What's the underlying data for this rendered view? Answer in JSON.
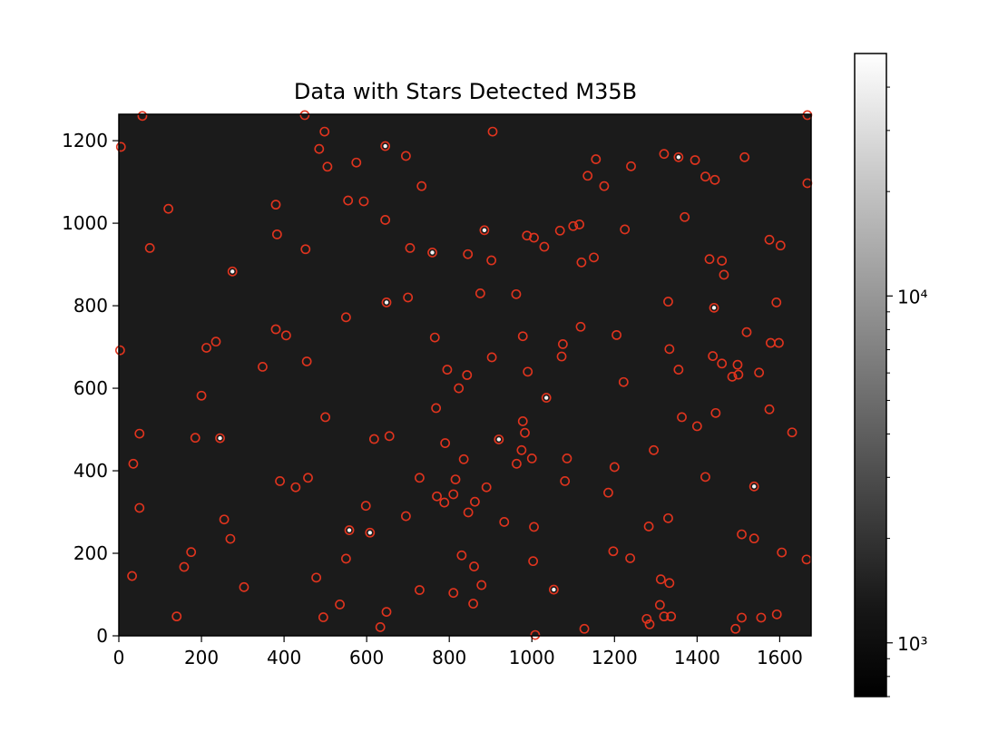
{
  "chart_data": {
    "type": "scatter",
    "title": "Data with Stars Detected M35B",
    "xlabel": "",
    "ylabel": "",
    "xlim": [
      0,
      1676
    ],
    "ylim": [
      0,
      1264
    ],
    "x_ticks": [
      0,
      200,
      400,
      600,
      800,
      1000,
      1200,
      1400,
      1600
    ],
    "x_tick_labels": [
      "0",
      "200",
      "400",
      "600",
      "800",
      "1000",
      "1200",
      "1400",
      "1600"
    ],
    "y_ticks": [
      0,
      200,
      400,
      600,
      800,
      1000,
      1200
    ],
    "y_tick_labels": [
      "0",
      "200",
      "400",
      "600",
      "800",
      "1000",
      "1200"
    ],
    "grid": false,
    "image": {
      "colormap": "gray",
      "scale": "log",
      "background_level": 900
    },
    "colorbar": {
      "scale": "log",
      "range": [
        700,
        50000
      ],
      "major_ticks": [
        1000,
        10000
      ],
      "major_tick_labels": [
        "10³",
        "10⁴"
      ],
      "minor_ticks": [
        700,
        800,
        900,
        2000,
        3000,
        4000,
        5000,
        6000,
        7000,
        8000,
        9000,
        20000,
        30000,
        40000
      ]
    },
    "marker_color": "#e0341e",
    "bright_stars": [
      [
        1035,
        577
      ],
      [
        558,
        256
      ],
      [
        608,
        250
      ],
      [
        275,
        883
      ],
      [
        648,
        808
      ],
      [
        645,
        1187
      ],
      [
        1538,
        362
      ],
      [
        1441,
        795
      ],
      [
        1355,
        1160
      ],
      [
        1053,
        112
      ],
      [
        759,
        929
      ],
      [
        885,
        983
      ],
      [
        920,
        476
      ],
      [
        245,
        479
      ]
    ],
    "stars": [
      [
        5,
        1185
      ],
      [
        57,
        1260
      ],
      [
        450,
        1262
      ],
      [
        1667,
        1262
      ],
      [
        120,
        1035
      ],
      [
        75,
        940
      ],
      [
        3,
        692
      ],
      [
        498,
        1222
      ],
      [
        905,
        1222
      ],
      [
        485,
        1180
      ],
      [
        695,
        1163
      ],
      [
        505,
        1137
      ],
      [
        575,
        1147
      ],
      [
        1155,
        1155
      ],
      [
        1135,
        1115
      ],
      [
        1175,
        1090
      ],
      [
        1240,
        1138
      ],
      [
        1320,
        1168
      ],
      [
        1395,
        1153
      ],
      [
        1420,
        1113
      ],
      [
        1443,
        1105
      ],
      [
        1515,
        1160
      ],
      [
        1667,
        1097
      ],
      [
        380,
        1045
      ],
      [
        555,
        1055
      ],
      [
        593,
        1053
      ],
      [
        733,
        1090
      ],
      [
        645,
        1008
      ],
      [
        383,
        973
      ],
      [
        452,
        937
      ],
      [
        705,
        940
      ],
      [
        845,
        925
      ],
      [
        902,
        910
      ],
      [
        988,
        970
      ],
      [
        1005,
        965
      ],
      [
        1030,
        943
      ],
      [
        1068,
        982
      ],
      [
        1100,
        993
      ],
      [
        1115,
        997
      ],
      [
        1120,
        905
      ],
      [
        1150,
        917
      ],
      [
        1225,
        985
      ],
      [
        1370,
        1015
      ],
      [
        1430,
        913
      ],
      [
        1460,
        909
      ],
      [
        1465,
        875
      ],
      [
        1575,
        960
      ],
      [
        1602,
        946
      ],
      [
        700,
        820
      ],
      [
        875,
        830
      ],
      [
        962,
        828
      ],
      [
        1330,
        810
      ],
      [
        1592,
        808
      ],
      [
        380,
        743
      ],
      [
        405,
        728
      ],
      [
        550,
        772
      ],
      [
        765,
        723
      ],
      [
        978,
        726
      ],
      [
        1075,
        707
      ],
      [
        1072,
        677
      ],
      [
        1118,
        749
      ],
      [
        1205,
        729
      ],
      [
        1520,
        736
      ],
      [
        1578,
        710
      ],
      [
        1598,
        710
      ],
      [
        212,
        698
      ],
      [
        235,
        713
      ],
      [
        455,
        665
      ],
      [
        348,
        652
      ],
      [
        200,
        582
      ],
      [
        795,
        645
      ],
      [
        843,
        632
      ],
      [
        823,
        600
      ],
      [
        903,
        675
      ],
      [
        990,
        640
      ],
      [
        1222,
        615
      ],
      [
        1333,
        695
      ],
      [
        1355,
        645
      ],
      [
        1438,
        678
      ],
      [
        1460,
        660
      ],
      [
        1498,
        657
      ],
      [
        1500,
        633
      ],
      [
        1550,
        638
      ],
      [
        1485,
        628
      ],
      [
        500,
        530
      ],
      [
        768,
        552
      ],
      [
        1363,
        530
      ],
      [
        1400,
        508
      ],
      [
        1445,
        540
      ],
      [
        1575,
        549
      ],
      [
        185,
        480
      ],
      [
        50,
        490
      ],
      [
        35,
        417
      ],
      [
        618,
        477
      ],
      [
        655,
        484
      ],
      [
        790,
        467
      ],
      [
        835,
        428
      ],
      [
        978,
        520
      ],
      [
        983,
        492
      ],
      [
        975,
        450
      ],
      [
        963,
        417
      ],
      [
        1000,
        430
      ],
      [
        1085,
        430
      ],
      [
        1080,
        375
      ],
      [
        1200,
        409
      ],
      [
        1295,
        450
      ],
      [
        1630,
        493
      ],
      [
        390,
        375
      ],
      [
        428,
        360
      ],
      [
        458,
        383
      ],
      [
        728,
        383
      ],
      [
        815,
        379
      ],
      [
        810,
        343
      ],
      [
        770,
        338
      ],
      [
        788,
        323
      ],
      [
        862,
        325
      ],
      [
        846,
        299
      ],
      [
        890,
        360
      ],
      [
        1185,
        347
      ],
      [
        1420,
        385
      ],
      [
        598,
        315
      ],
      [
        695,
        290
      ],
      [
        933,
        276
      ],
      [
        1005,
        264
      ],
      [
        1330,
        285
      ],
      [
        1283,
        265
      ],
      [
        1508,
        246
      ],
      [
        1538,
        236
      ],
      [
        255,
        282
      ],
      [
        270,
        235
      ],
      [
        50,
        310
      ],
      [
        175,
        203
      ],
      [
        158,
        167
      ],
      [
        32,
        145
      ],
      [
        303,
        118
      ],
      [
        550,
        187
      ],
      [
        478,
        141
      ],
      [
        830,
        195
      ],
      [
        860,
        168
      ],
      [
        878,
        123
      ],
      [
        1003,
        181
      ],
      [
        1197,
        205
      ],
      [
        1238,
        188
      ],
      [
        1605,
        202
      ],
      [
        1665,
        185
      ],
      [
        1312,
        137
      ],
      [
        1333,
        128
      ],
      [
        728,
        111
      ],
      [
        810,
        104
      ],
      [
        1310,
        75
      ],
      [
        140,
        47
      ],
      [
        495,
        45
      ],
      [
        535,
        76
      ],
      [
        648,
        58
      ],
      [
        633,
        21
      ],
      [
        858,
        78
      ],
      [
        1008,
        2
      ],
      [
        1127,
        17
      ],
      [
        1278,
        41
      ],
      [
        1285,
        28
      ],
      [
        1320,
        47
      ],
      [
        1337,
        47
      ],
      [
        1493,
        17
      ],
      [
        1508,
        44
      ],
      [
        1555,
        44
      ],
      [
        1593,
        52
      ]
    ]
  }
}
